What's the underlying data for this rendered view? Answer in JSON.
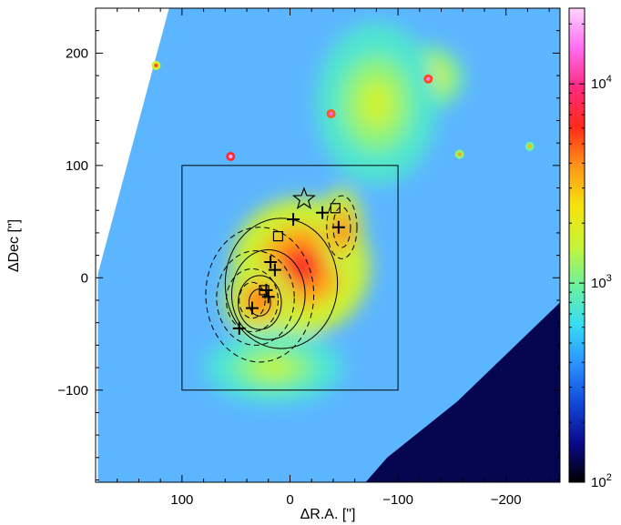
{
  "chart_data": {
    "type": "heatmap",
    "title": "",
    "xlabel": "ΔR.A. [\"]",
    "ylabel": "ΔDec [\"]",
    "xlim": [
      180,
      -250
    ],
    "ylim": [
      -182,
      240
    ],
    "xticks": [
      100,
      0,
      -100,
      -200
    ],
    "xtick_labels": [
      "100",
      "0",
      "−100",
      "−200"
    ],
    "yticks": [
      -100,
      0,
      100,
      200
    ],
    "ytick_labels": [
      "−100",
      "0",
      "100",
      "200"
    ],
    "grid": false,
    "colorbar": {
      "scale": "log",
      "range": [
        100,
        24000
      ],
      "colormap": [
        "#000000",
        "#0a0a8c",
        "#1048d8",
        "#2c92ff",
        "#38dcf4",
        "#6ef29c",
        "#c8f436",
        "#f6e20c",
        "#ff9618",
        "#ff2a1a",
        "#ff2a7e",
        "#ff6ef2",
        "#ffd4ff"
      ],
      "ticks": [
        100,
        1000,
        10000
      ],
      "tick_labels": [
        {
          "base": "10",
          "exp": "2"
        },
        {
          "base": "10",
          "exp": "3"
        },
        {
          "base": "10",
          "exp": "4"
        }
      ]
    },
    "box": {
      "x": [
        100,
        -100
      ],
      "y": [
        -100,
        100
      ]
    },
    "markers": {
      "plus": [
        [
          -30,
          58
        ],
        [
          -3,
          52
        ],
        [
          18,
          14
        ],
        [
          14,
          7
        ],
        [
          22,
          -11
        ],
        [
          20,
          -17
        ],
        [
          35,
          -27
        ],
        [
          47,
          -45
        ],
        [
          -45,
          45
        ]
      ],
      "square": [
        [
          11,
          37
        ],
        [
          -42,
          62
        ],
        [
          24,
          -11
        ]
      ],
      "star": [
        [
          -13,
          70
        ]
      ]
    },
    "features": [
      {
        "x": -10,
        "y": 10,
        "peak": 6500,
        "sx": 40,
        "sy": 38
      },
      {
        "x": 28,
        "y": -20,
        "peak": 5500,
        "sx": 20,
        "sy": 20
      },
      {
        "x": -48,
        "y": 42,
        "peak": 5500,
        "sx": 12,
        "sy": 24
      },
      {
        "x": -125,
        "y": 178,
        "peak": 2800,
        "sx": 22,
        "sy": 18
      },
      {
        "x": -80,
        "y": 155,
        "peak": 1600,
        "sx": 35,
        "sy": 45
      },
      {
        "x": 15,
        "y": -80,
        "peak": 1500,
        "sx": 40,
        "sy": 20
      },
      {
        "x": 55,
        "y": 108,
        "peak": 20000,
        "sx": 2,
        "sy": 2
      },
      {
        "x": -38,
        "y": 146,
        "peak": 15000,
        "sx": 2,
        "sy": 2
      },
      {
        "x": -128,
        "y": 177,
        "peak": 16000,
        "sx": 2,
        "sy": 2
      },
      {
        "x": 124,
        "y": 189,
        "peak": 5000,
        "sx": 2,
        "sy": 2
      },
      {
        "x": -157,
        "y": 110,
        "peak": 3500,
        "sx": 2,
        "sy": 2
      },
      {
        "x": -222,
        "y": 117,
        "peak": 3000,
        "sx": 2,
        "sy": 2
      }
    ]
  }
}
